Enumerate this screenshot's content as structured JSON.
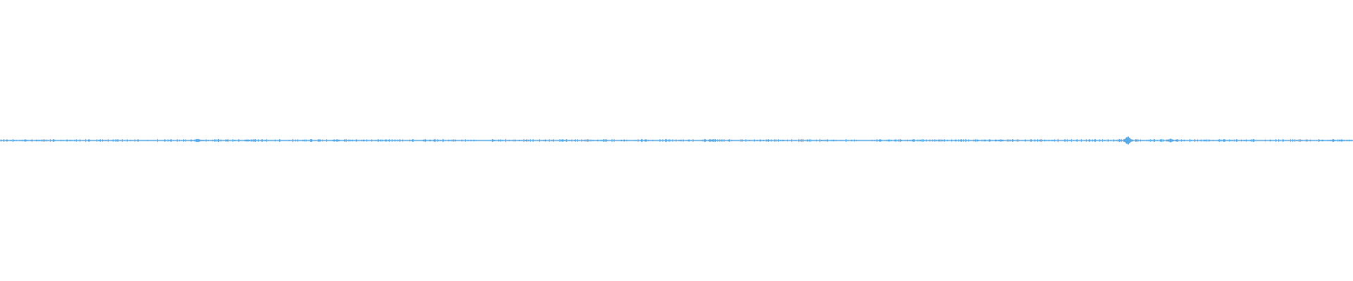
{
  "waveform": {
    "color": "#5aaae6",
    "background": "#ffffff",
    "baseline_level": 0
  }
}
